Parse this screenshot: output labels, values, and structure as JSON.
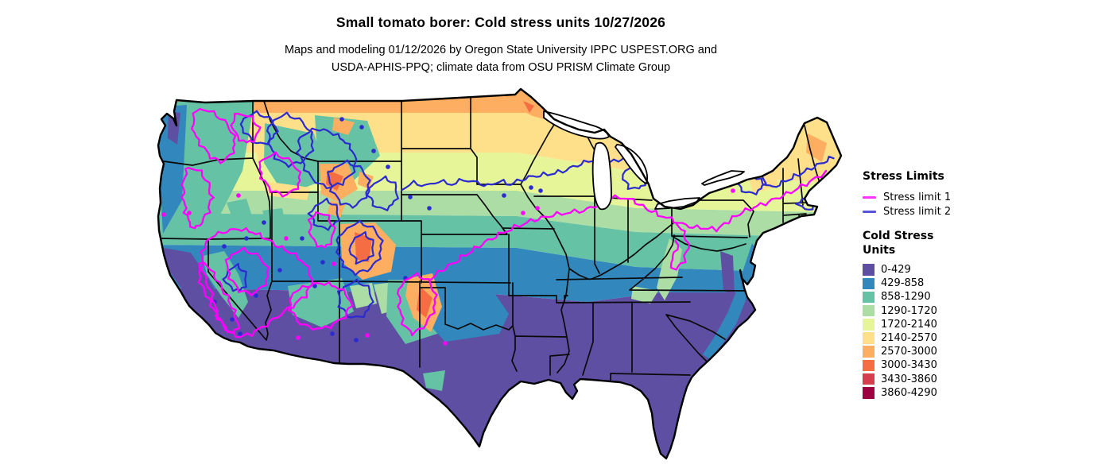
{
  "title": "Small tomato borer: Cold stress units 10/27/2026",
  "subtitle_line1": "Maps and modeling 01/12/2026 by Oregon State University IPPC USPEST.ORG and",
  "subtitle_line2": "USDA-APHIS-PPQ; climate data from OSU PRISM Climate Group",
  "legend": {
    "stress_limits": {
      "heading": "Stress Limits",
      "items": [
        {
          "label": "Stress limit 1",
          "color": "#ff00ff"
        },
        {
          "label": "Stress limit 2",
          "color": "#2b2bd0"
        }
      ]
    },
    "cold_stress": {
      "heading_line1": "Cold Stress",
      "heading_line2": "Units",
      "classes": [
        {
          "label": "0-429",
          "color": "#5e4fa2"
        },
        {
          "label": "429-858",
          "color": "#3288bd"
        },
        {
          "label": "858-1290",
          "color": "#66c2a5"
        },
        {
          "label": "1290-1720",
          "color": "#abdda4"
        },
        {
          "label": "1720-2140",
          "color": "#e6f598"
        },
        {
          "label": "2140-2570",
          "color": "#fee08b"
        },
        {
          "label": "2570-3000",
          "color": "#fdae61"
        },
        {
          "label": "3000-3430",
          "color": "#f46d43"
        },
        {
          "label": "3430-3860",
          "color": "#d53e4f"
        },
        {
          "label": "3860-4290",
          "color": "#9e0142"
        }
      ]
    }
  },
  "map": {
    "region_label": "Contiguous United States cold stress raster with stress limit contours"
  }
}
